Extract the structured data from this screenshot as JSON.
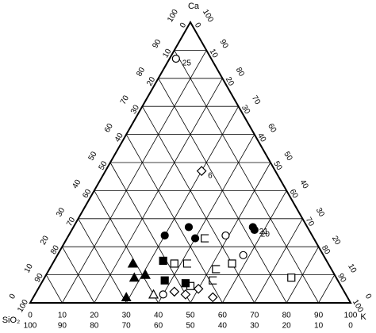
{
  "chart_data": {
    "type": "ternary",
    "axes": {
      "top": "Ca",
      "left": "SiO₂",
      "right": "K"
    },
    "ticks": [
      0,
      10,
      20,
      30,
      40,
      50,
      60,
      70,
      80,
      90,
      100
    ],
    "grid": true,
    "series": [
      {
        "marker": "circle",
        "filled": false,
        "color": "#000000",
        "ca": [
          87,
          24,
          17,
          3
        ],
        "sio2": [
          11,
          27,
          25,
          57
        ],
        "k": [
          2,
          49,
          58,
          40
        ],
        "labels": [
          "25",
          null,
          null,
          null
        ]
      },
      {
        "marker": "diamond",
        "filled": false,
        "color": "#000000",
        "ca": [
          47,
          4,
          3,
          2,
          5
        ],
        "sio2": [
          23,
          53,
          50,
          42,
          45
        ],
        "k": [
          30,
          43,
          47,
          56,
          50
        ],
        "labels": [
          "6",
          null,
          null,
          null,
          null
        ]
      },
      {
        "marker": "circle",
        "filled": true,
        "color": "#000000",
        "ca": [
          27,
          24,
          23,
          27,
          26
        ],
        "sio2": [
          37,
          46,
          37,
          17,
          17
        ],
        "k": [
          36,
          30,
          40,
          56,
          57
        ],
        "labels": [
          null,
          null,
          null,
          "21",
          "20"
        ]
      },
      {
        "marker": "bracket",
        "filled": false,
        "color": "#000000",
        "ca": [
          23,
          14,
          12,
          8
        ],
        "sio2": [
          34,
          44,
          36,
          39
        ],
        "k": [
          43,
          42,
          52,
          53
        ]
      },
      {
        "marker": "square",
        "filled": false,
        "color": "#000000",
        "ca": [
          14,
          14,
          6,
          9
        ],
        "sio2": [
          48,
          30,
          47,
          14
        ],
        "k": [
          38,
          56,
          47,
          77
        ]
      },
      {
        "marker": "square",
        "filled": true,
        "color": "#000000",
        "ca": [
          15,
          8,
          7
        ],
        "sio2": [
          51,
          54,
          48
        ],
        "k": [
          34,
          38,
          45
        ]
      },
      {
        "marker": "triangle",
        "filled": true,
        "color": "#000000",
        "ca": [
          14,
          10,
          9,
          2
        ],
        "sio2": [
          61,
          59,
          63,
          69
        ],
        "k": [
          25,
          31,
          28,
          29
        ]
      },
      {
        "marker": "triangle",
        "filled": false,
        "color": "#000000",
        "ca": [
          3
        ],
        "sio2": [
          60
        ],
        "k": [
          37
        ]
      }
    ]
  }
}
